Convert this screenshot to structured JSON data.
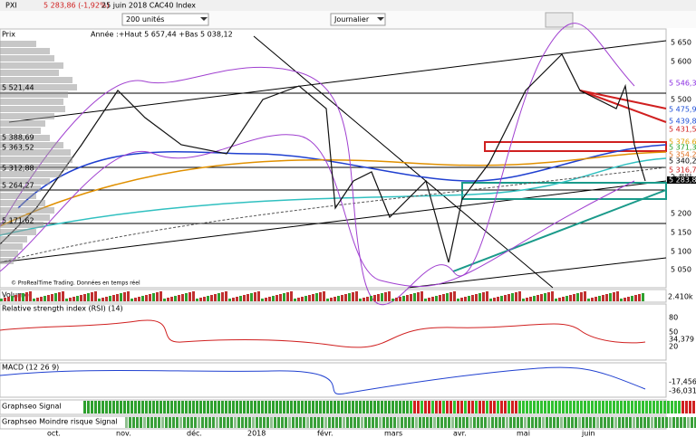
{
  "header": {
    "symbol": "PXI",
    "change": "5 283,86 (-1,92%)",
    "date_index": "25 juin 2018 CAC40 Index"
  },
  "toolbar": {
    "units": "200 unités",
    "period": "Journalier"
  },
  "price_panel": {
    "title": "Prix",
    "stats": "Année :+Haut 5 657,44 +Bas 5 038,12",
    "axis_labels": [
      "5 650",
      "5 600",
      "5 500",
      "5 300",
      "5 200",
      "5 150",
      "5 100",
      "5 050"
    ],
    "value_labels": [
      {
        "text": "5 546,33",
        "color": "#8a2be2"
      },
      {
        "text": "5 475,98",
        "color": "#1e4fd8"
      },
      {
        "text": "5 439,80",
        "color": "#1e4fd8"
      },
      {
        "text": "5 431,52",
        "color": "#d02020"
      },
      {
        "text": "5 376,69",
        "color": "#e0a000"
      },
      {
        "text": "5 371,37",
        "color": "#20a020"
      },
      {
        "text": "5 354,20",
        "color": "#e07020"
      },
      {
        "text": "5 340,22",
        "color": "#000000"
      },
      {
        "text": "5 316,71",
        "color": "#d02020"
      },
      {
        "text": "5 283,86",
        "color": "#000000"
      }
    ],
    "left_labels": [
      "5 521,44",
      "5 388,69",
      "5 363,52",
      "5 312,88",
      "5 264,27",
      "5 171,62"
    ],
    "watermark": "© ProRealTime Trading. Données en temps réel"
  },
  "volume_panel": {
    "title": "Volume",
    "value": "2.410k"
  },
  "rsi_panel": {
    "title": "Relative strength index (RSI) (14)",
    "labels": [
      "80",
      "50",
      "34,379",
      "20"
    ]
  },
  "macd_panel": {
    "title": "MACD (12 26 9)",
    "labels": [
      "-17,456",
      "-36,031"
    ]
  },
  "signal_panels": [
    {
      "title": "Graphseo Signal"
    },
    {
      "title": "Graphseo Moindre risque Signal"
    }
  ],
  "x_labels": [
    "oct.",
    "nov.",
    "déc.",
    "2018",
    "févr.",
    "mars",
    "avr.",
    "mai",
    "juin"
  ]
}
